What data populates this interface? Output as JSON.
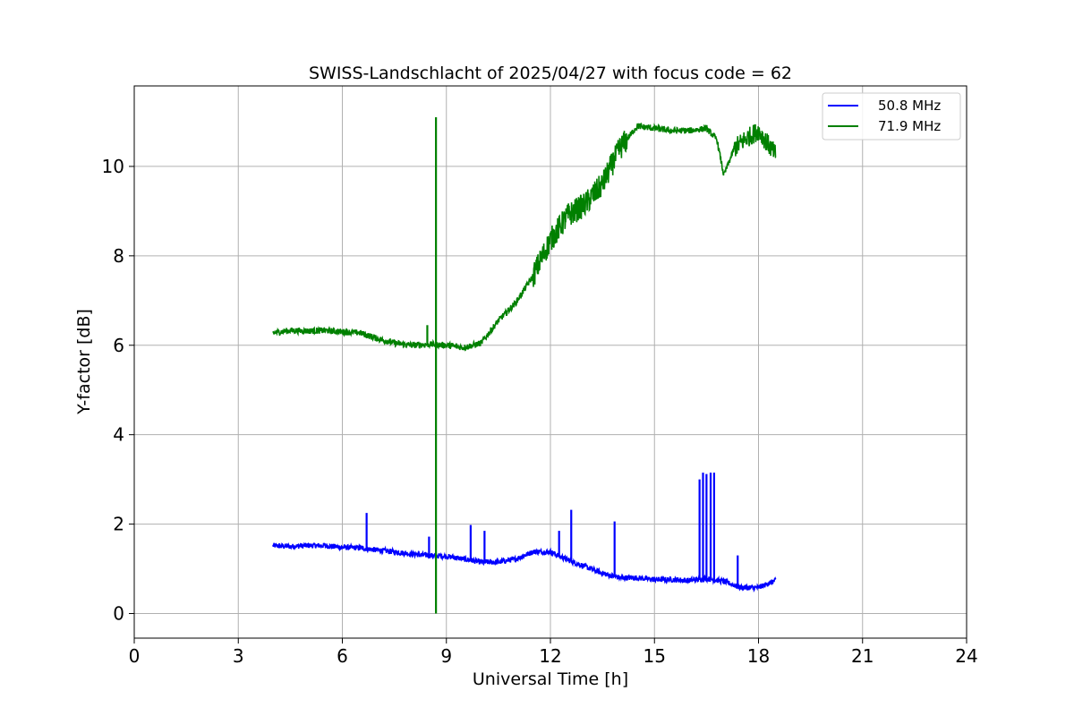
{
  "chart_data": {
    "type": "line",
    "title": "SWISS-Landschlacht of 2025/04/27 with focus code = 62",
    "xlabel": "Universal Time [h]",
    "ylabel": "Y-factor [dB]",
    "xlim": [
      0,
      24
    ],
    "ylim": [
      -0.55,
      11.8
    ],
    "xticks": [
      0,
      3,
      6,
      9,
      12,
      15,
      18,
      21,
      24
    ],
    "yticks": [
      0,
      2,
      4,
      6,
      8,
      10
    ],
    "grid": true,
    "legend_position": "top-right",
    "series": [
      {
        "name": "50.8 MHz",
        "color": "#0000ff",
        "x": [
          4.0,
          4.5,
          5.0,
          5.5,
          6.0,
          6.5,
          7.0,
          7.5,
          8.0,
          8.5,
          9.0,
          9.5,
          10.0,
          10.5,
          11.0,
          11.5,
          12.0,
          12.5,
          13.0,
          13.5,
          14.0,
          14.5,
          15.0,
          15.5,
          16.0,
          16.5,
          17.0,
          17.5,
          18.0,
          18.5
        ],
        "y": [
          1.52,
          1.5,
          1.52,
          1.52,
          1.48,
          1.47,
          1.42,
          1.38,
          1.33,
          1.3,
          1.28,
          1.22,
          1.15,
          1.15,
          1.22,
          1.38,
          1.38,
          1.2,
          1.05,
          0.9,
          0.8,
          0.8,
          0.76,
          0.76,
          0.74,
          0.78,
          0.72,
          0.58,
          0.58,
          0.74
        ],
        "spikes": [
          {
            "x": 6.7,
            "y": 2.25
          },
          {
            "x": 8.5,
            "y": 1.72
          },
          {
            "x": 9.7,
            "y": 1.98
          },
          {
            "x": 10.1,
            "y": 1.85
          },
          {
            "x": 12.25,
            "y": 1.85
          },
          {
            "x": 12.6,
            "y": 2.32
          },
          {
            "x": 13.85,
            "y": 2.06
          },
          {
            "x": 16.3,
            "y": 3.0
          },
          {
            "x": 16.4,
            "y": 3.15
          },
          {
            "x": 16.5,
            "y": 3.12
          },
          {
            "x": 16.62,
            "y": 3.15
          },
          {
            "x": 16.72,
            "y": 3.15
          },
          {
            "x": 17.4,
            "y": 1.3
          }
        ]
      },
      {
        "name": "71.9 MHz",
        "color": "#008000",
        "x": [
          4.0,
          4.5,
          5.0,
          5.5,
          6.0,
          6.5,
          7.0,
          7.5,
          8.0,
          8.5,
          9.0,
          9.5,
          10.0,
          10.5,
          11.0,
          11.5,
          12.0,
          12.5,
          13.0,
          13.5,
          14.0,
          14.5,
          15.0,
          15.5,
          16.0,
          16.5,
          16.8,
          17.0,
          17.3,
          17.6,
          18.0,
          18.5
        ],
        "y": [
          6.28,
          6.33,
          6.32,
          6.33,
          6.3,
          6.28,
          6.15,
          6.05,
          6.0,
          6.02,
          6.0,
          5.95,
          6.05,
          6.55,
          6.95,
          7.55,
          8.35,
          8.9,
          9.15,
          9.6,
          10.4,
          10.9,
          10.85,
          10.8,
          10.8,
          10.85,
          10.6,
          9.8,
          10.4,
          10.6,
          10.8,
          10.25
        ],
        "spikes": [
          {
            "x": 8.7,
            "y": 11.1
          },
          {
            "x": 8.7,
            "y": 0.0
          },
          {
            "x": 8.45,
            "y": 6.45
          }
        ]
      }
    ]
  }
}
